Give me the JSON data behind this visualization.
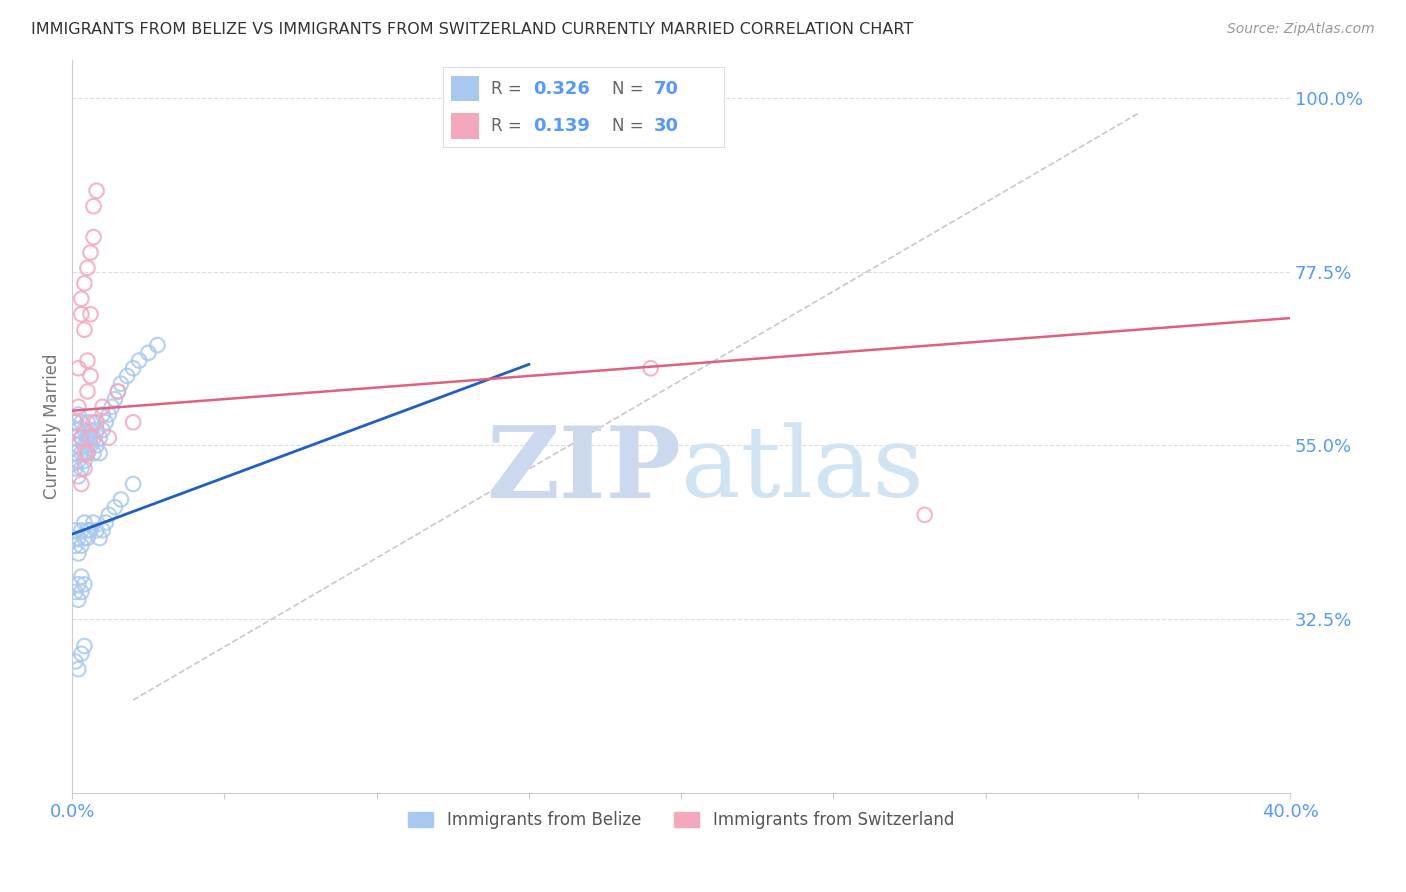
{
  "title": "IMMIGRANTS FROM BELIZE VS IMMIGRANTS FROM SWITZERLAND CURRENTLY MARRIED CORRELATION CHART",
  "source": "Source: ZipAtlas.com",
  "ylabel": "Currently Married",
  "xlim": [
    0.0,
    0.4
  ],
  "ylim": [
    0.1,
    1.05
  ],
  "yticks": [
    0.325,
    0.55,
    0.775,
    1.0
  ],
  "ytick_labels": [
    "32.5%",
    "55.0%",
    "77.5%",
    "100.0%"
  ],
  "xticks": [
    0.0,
    0.05,
    0.1,
    0.15,
    0.2,
    0.25,
    0.3,
    0.35,
    0.4
  ],
  "xtick_labels": [
    "0.0%",
    "",
    "",
    "",
    "",
    "",
    "",
    "",
    "40.0%"
  ],
  "color_belize": "#a8c8f0",
  "color_switzerland": "#f4a8bc",
  "color_belize_line": "#2060c0",
  "color_switzerland_line": "#e06080",
  "color_ref_line": "#bbbbbb",
  "color_axis_labels": "#5599ff",
  "color_title": "#333333",
  "watermark_color": "#ccd8ee",
  "belize_x": [
    0.001,
    0.001,
    0.001,
    0.001,
    0.002,
    0.002,
    0.002,
    0.002,
    0.002,
    0.003,
    0.003,
    0.003,
    0.003,
    0.004,
    0.004,
    0.004,
    0.005,
    0.005,
    0.005,
    0.006,
    0.006,
    0.007,
    0.007,
    0.008,
    0.008,
    0.009,
    0.009,
    0.01,
    0.01,
    0.011,
    0.012,
    0.013,
    0.014,
    0.015,
    0.016,
    0.018,
    0.02,
    0.022,
    0.025,
    0.028,
    0.001,
    0.001,
    0.002,
    0.002,
    0.003,
    0.003,
    0.004,
    0.004,
    0.005,
    0.005,
    0.006,
    0.007,
    0.008,
    0.009,
    0.01,
    0.011,
    0.012,
    0.014,
    0.016,
    0.02,
    0.001,
    0.002,
    0.002,
    0.003,
    0.003,
    0.004,
    0.001,
    0.002,
    0.003,
    0.004
  ],
  "belize_y": [
    0.56,
    0.54,
    0.52,
    0.58,
    0.55,
    0.53,
    0.57,
    0.51,
    0.59,
    0.54,
    0.56,
    0.52,
    0.58,
    0.55,
    0.57,
    0.53,
    0.56,
    0.54,
    0.58,
    0.55,
    0.57,
    0.54,
    0.56,
    0.55,
    0.57,
    0.54,
    0.56,
    0.57,
    0.59,
    0.58,
    0.59,
    0.6,
    0.61,
    0.62,
    0.63,
    0.64,
    0.65,
    0.66,
    0.67,
    0.68,
    0.44,
    0.42,
    0.43,
    0.41,
    0.44,
    0.42,
    0.43,
    0.45,
    0.44,
    0.43,
    0.44,
    0.45,
    0.44,
    0.43,
    0.44,
    0.45,
    0.46,
    0.47,
    0.48,
    0.5,
    0.36,
    0.35,
    0.37,
    0.36,
    0.38,
    0.37,
    0.27,
    0.26,
    0.28,
    0.29
  ],
  "switzerland_x": [
    0.001,
    0.002,
    0.003,
    0.004,
    0.005,
    0.006,
    0.007,
    0.008,
    0.002,
    0.003,
    0.004,
    0.005,
    0.006,
    0.007,
    0.003,
    0.004,
    0.005,
    0.006,
    0.008,
    0.01,
    0.012,
    0.015,
    0.02,
    0.19,
    0.28,
    0.003,
    0.004,
    0.005,
    0.006,
    0.007
  ],
  "switzerland_y": [
    0.58,
    0.6,
    0.56,
    0.54,
    0.62,
    0.64,
    0.86,
    0.88,
    0.65,
    0.72,
    0.7,
    0.66,
    0.8,
    0.82,
    0.74,
    0.76,
    0.78,
    0.72,
    0.58,
    0.6,
    0.56,
    0.62,
    0.58,
    0.65,
    0.46,
    0.5,
    0.52,
    0.54,
    0.56,
    0.58
  ],
  "belize_trend_x": [
    0.0,
    0.15
  ],
  "belize_trend_y": [
    0.435,
    0.655
  ],
  "switzerland_trend_x": [
    0.0,
    0.4
  ],
  "switzerland_trend_y": [
    0.595,
    0.715
  ],
  "ref_line_x": [
    0.02,
    0.35
  ],
  "ref_line_y": [
    0.22,
    0.98
  ],
  "background_color": "#ffffff",
  "grid_color": "#dddddd"
}
